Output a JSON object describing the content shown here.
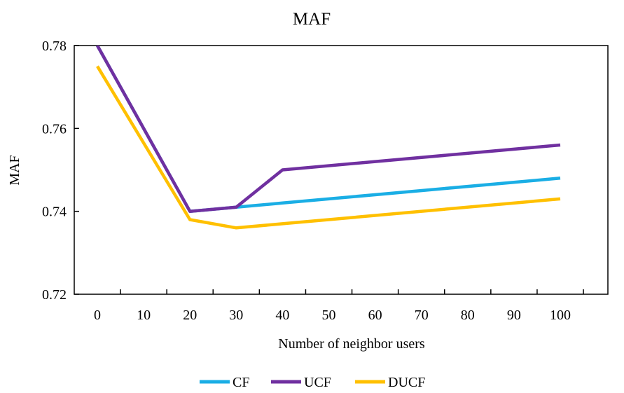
{
  "chart_data": {
    "type": "line",
    "title": "MAF",
    "xlabel": "Number of neighbor users",
    "ylabel": "MAF",
    "categories": [
      "0",
      "10",
      "20",
      "30",
      "40",
      "50",
      "60",
      "70",
      "80",
      "90",
      "100"
    ],
    "x": [
      0,
      20,
      30,
      40,
      100
    ],
    "ylim": [
      0.72,
      0.78
    ],
    "yticks": [
      "0.72",
      "0.74",
      "0.76",
      "0.78"
    ],
    "grid": false,
    "legend_position": "bottom",
    "series": [
      {
        "name": "CF",
        "color": "#1aaee5",
        "x": [
          0,
          20,
          30,
          40,
          100
        ],
        "values": [
          0.78,
          0.74,
          0.741,
          0.742,
          0.748
        ]
      },
      {
        "name": "UCF",
        "color": "#7030a0",
        "x": [
          0,
          20,
          30,
          40,
          100
        ],
        "values": [
          0.78,
          0.74,
          0.741,
          0.75,
          0.756
        ]
      },
      {
        "name": "DUCF",
        "color": "#ffc000",
        "x": [
          0,
          20,
          30,
          40,
          100
        ],
        "values": [
          0.775,
          0.738,
          0.736,
          0.737,
          0.743
        ]
      }
    ]
  }
}
